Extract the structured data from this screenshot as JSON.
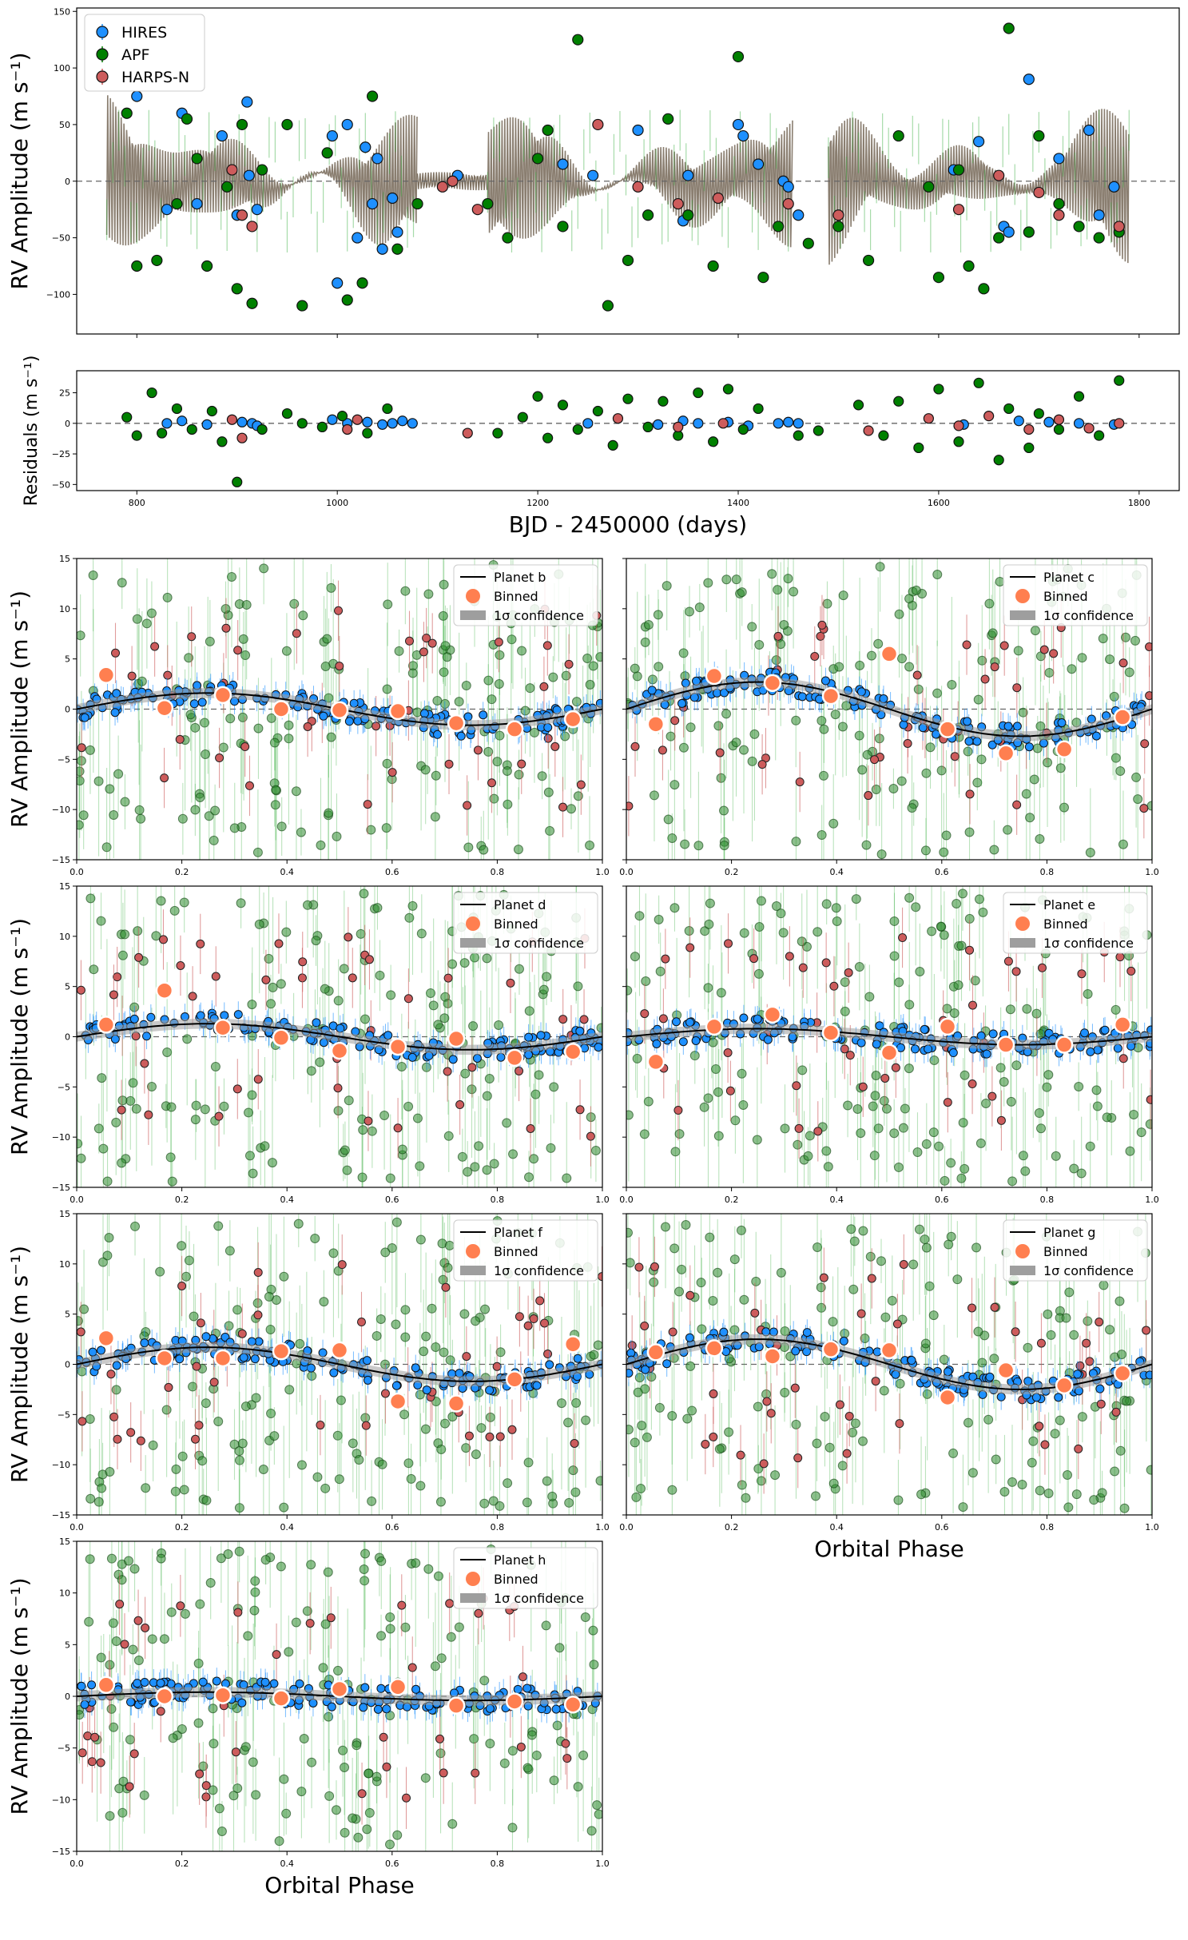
{
  "instruments": [
    {
      "name": "HIRES",
      "color": "#1E90FF"
    },
    {
      "name": "APF",
      "color": "#008000"
    },
    {
      "name": "HARPS-N",
      "color": "#CD5C5C"
    }
  ],
  "colors": {
    "model": "#7d7060",
    "binned": "#FF7F50",
    "confidence": "#9e9e9e",
    "zero_line": "#666666"
  },
  "chart_data": [
    {
      "id": "rv-timeseries",
      "type": "scatter",
      "xlabel": "",
      "ylabel": "RV Amplitude (m s⁻¹)",
      "xlim": [
        740,
        1840
      ],
      "ylim": [
        -135,
        153
      ],
      "xticks": [
        "800",
        "1000",
        "1200",
        "1400",
        "1600",
        "1800"
      ],
      "yticks": [
        "−100",
        "−50",
        "0",
        "50",
        "100",
        "150"
      ],
      "legend": [
        "HIRES",
        "APF",
        "HARPS-N"
      ],
      "legend_position": "top-left",
      "zero_line": true,
      "series": [
        {
          "name": "HIRES",
          "x": [
            800,
            830,
            845,
            860,
            885,
            900,
            910,
            912,
            920,
            995,
            1000,
            1010,
            1020,
            1028,
            1035,
            1040,
            1045,
            1055,
            1060,
            1120,
            1225,
            1255,
            1300,
            1345,
            1350,
            1400,
            1405,
            1420,
            1445,
            1450,
            1460,
            1615,
            1640,
            1665,
            1670,
            1690,
            1720,
            1750,
            1760,
            1775
          ],
          "y": [
            75,
            -25,
            60,
            -20,
            40,
            -30,
            70,
            5,
            -25,
            40,
            -90,
            50,
            -50,
            30,
            -20,
            20,
            -60,
            -15,
            -45,
            5,
            15,
            5,
            45,
            -35,
            5,
            50,
            40,
            15,
            0,
            -5,
            -30,
            10,
            35,
            -40,
            -45,
            90,
            20,
            45,
            -30,
            -5
          ]
        },
        {
          "name": "APF",
          "x": [
            790,
            800,
            820,
            840,
            850,
            860,
            870,
            890,
            900,
            905,
            915,
            925,
            950,
            965,
            990,
            1010,
            1025,
            1035,
            1060,
            1080,
            1150,
            1170,
            1200,
            1210,
            1225,
            1240,
            1270,
            1290,
            1310,
            1330,
            1350,
            1375,
            1400,
            1425,
            1440,
            1470,
            1500,
            1530,
            1560,
            1590,
            1600,
            1620,
            1630,
            1645,
            1660,
            1670,
            1690,
            1700,
            1720,
            1740,
            1760,
            1780
          ],
          "y": [
            60,
            -75,
            -70,
            -20,
            55,
            20,
            -75,
            -5,
            -95,
            50,
            -108,
            10,
            50,
            -110,
            25,
            -105,
            -90,
            75,
            -60,
            -20,
            -20,
            -50,
            20,
            45,
            -40,
            125,
            -110,
            -70,
            -30,
            55,
            -30,
            -75,
            110,
            -85,
            -40,
            -55,
            -40,
            -70,
            40,
            -5,
            -85,
            10,
            -75,
            -95,
            -50,
            135,
            -45,
            40,
            -20,
            -40,
            -50,
            -45
          ]
        },
        {
          "name": "HARPS-N",
          "x": [
            895,
            905,
            915,
            1105,
            1115,
            1140,
            1260,
            1300,
            1340,
            1380,
            1450,
            1500,
            1620,
            1660,
            1700,
            1720,
            1780
          ],
          "y": [
            10,
            -30,
            -40,
            -5,
            0,
            -25,
            50,
            -5,
            -20,
            -15,
            -20,
            -30,
            -25,
            5,
            -10,
            -30,
            -40
          ]
        }
      ],
      "model_segments": [
        [
          770,
          1080
        ],
        [
          1150,
          1455
        ],
        [
          1490,
          1790
        ]
      ]
    },
    {
      "id": "residuals",
      "type": "scatter",
      "xlabel": "BJD - 2450000 (days)",
      "ylabel": "Residuals (m s⁻¹)",
      "xlim": [
        740,
        1840
      ],
      "ylim": [
        -55,
        43
      ],
      "xticks": [
        "800",
        "1000",
        "1200",
        "1400",
        "1600",
        "1800"
      ],
      "yticks": [
        "−50",
        "−25",
        "0",
        "25"
      ],
      "zero_line": true,
      "series": [
        {
          "name": "HIRES",
          "x": [
            830,
            845,
            870,
            905,
            915,
            920,
            995,
            1010,
            1030,
            1045,
            1055,
            1065,
            1075,
            1250,
            1320,
            1345,
            1360,
            1390,
            1410,
            1440,
            1450,
            1460,
            1625,
            1680,
            1710,
            1740,
            1775
          ],
          "y": [
            0,
            2,
            -1,
            1,
            0,
            -2,
            3,
            0,
            1,
            -1,
            0,
            2,
            0,
            0,
            -1,
            2,
            0,
            1,
            -2,
            0,
            1,
            0,
            -1,
            2,
            1,
            0,
            -1
          ]
        },
        {
          "name": "APF",
          "x": [
            790,
            800,
            815,
            825,
            840,
            855,
            875,
            885,
            900,
            925,
            950,
            965,
            985,
            1005,
            1030,
            1050,
            1160,
            1185,
            1200,
            1210,
            1225,
            1240,
            1260,
            1275,
            1290,
            1310,
            1325,
            1340,
            1360,
            1375,
            1390,
            1405,
            1420,
            1460,
            1480,
            1520,
            1545,
            1560,
            1580,
            1600,
            1620,
            1640,
            1660,
            1670,
            1690,
            1700,
            1720,
            1740,
            1760,
            1780
          ],
          "y": [
            5,
            -10,
            25,
            -8,
            12,
            -5,
            10,
            -15,
            -48,
            -5,
            8,
            0,
            -3,
            6,
            -8,
            12,
            -8,
            5,
            22,
            -12,
            15,
            -5,
            10,
            -18,
            20,
            -3,
            18,
            -10,
            25,
            -15,
            28,
            -5,
            12,
            -10,
            -6,
            15,
            -10,
            18,
            -20,
            28,
            -15,
            33,
            -30,
            12,
            -20,
            8,
            -5,
            22,
            -10,
            35
          ]
        },
        {
          "name": "HARPS-N",
          "x": [
            895,
            905,
            1010,
            1020,
            1130,
            1280,
            1340,
            1385,
            1530,
            1590,
            1620,
            1650,
            1690,
            1720,
            1750,
            1780
          ],
          "y": [
            3,
            -12,
            -5,
            3,
            -8,
            4,
            -3,
            0,
            -6,
            4,
            -2,
            6,
            -5,
            3,
            -4,
            0
          ]
        }
      ]
    },
    {
      "id": "planet-b",
      "type": "scatter",
      "xlabel": "",
      "ylabel": "RV Amplitude (m s⁻¹)",
      "xlim": [
        0,
        1
      ],
      "ylim": [
        -15,
        15
      ],
      "xticks": [
        "0.0",
        "0.2",
        "0.4",
        "0.6",
        "0.8",
        "1.0"
      ],
      "yticks": [
        "−15",
        "−10",
        "−5",
        "0",
        "5",
        "10",
        "15"
      ],
      "legend": [
        "Planet b",
        "Binned",
        "1σ confidence"
      ],
      "legend_position": "top-right",
      "model_amplitude": 1.6,
      "model_phase": 0.0,
      "binned": {
        "x": [
          0.056,
          0.167,
          0.278,
          0.389,
          0.5,
          0.611,
          0.722,
          0.833,
          0.944
        ],
        "y": [
          3.4,
          0.1,
          1.4,
          0.0,
          -0.1,
          -0.2,
          -1.4,
          -2.0,
          -1.0
        ]
      }
    },
    {
      "id": "planet-c",
      "type": "scatter",
      "xlabel": "",
      "ylabel": "",
      "xlim": [
        0,
        1
      ],
      "ylim": [
        -15,
        15
      ],
      "xticks": [
        "0.0",
        "0.2",
        "0.4",
        "0.6",
        "0.8",
        "1.0"
      ],
      "yticks": [
        "−15",
        "−10",
        "−5",
        "0",
        "5",
        "10",
        "15"
      ],
      "legend": [
        "Planet c",
        "Binned",
        "1σ confidence"
      ],
      "legend_position": "top-right",
      "model_amplitude": 2.7,
      "model_phase": 0.0,
      "binned": {
        "x": [
          0.056,
          0.167,
          0.278,
          0.389,
          0.5,
          0.611,
          0.722,
          0.833,
          0.944
        ],
        "y": [
          -1.5,
          3.3,
          2.6,
          1.3,
          5.5,
          -2.0,
          -4.4,
          -4.0,
          -0.8
        ]
      }
    },
    {
      "id": "planet-d",
      "type": "scatter",
      "xlabel": "",
      "ylabel": "RV Amplitude (m s⁻¹)",
      "xlim": [
        0,
        1
      ],
      "ylim": [
        -15,
        15
      ],
      "xticks": [
        "0.0",
        "0.2",
        "0.4",
        "0.6",
        "0.8",
        "1.0"
      ],
      "yticks": [
        "−15",
        "−10",
        "−5",
        "0",
        "5",
        "10",
        "15"
      ],
      "legend": [
        "Planet d",
        "Binned",
        "1σ confidence"
      ],
      "legend_position": "top-right",
      "model_amplitude": 1.3,
      "model_phase": 0.0,
      "binned": {
        "x": [
          0.056,
          0.167,
          0.278,
          0.389,
          0.5,
          0.611,
          0.722,
          0.833,
          0.944
        ],
        "y": [
          1.2,
          4.6,
          0.9,
          -0.1,
          -1.4,
          -1.0,
          -0.2,
          -2.1,
          -1.5
        ]
      }
    },
    {
      "id": "planet-e",
      "type": "scatter",
      "xlabel": "",
      "ylabel": "",
      "xlim": [
        0,
        1
      ],
      "ylim": [
        -15,
        15
      ],
      "xticks": [
        "0.0",
        "0.2",
        "0.4",
        "0.6",
        "0.8",
        "1.0"
      ],
      "yticks": [
        "−15",
        "−10",
        "−5",
        "0",
        "5",
        "10",
        "15"
      ],
      "legend": [
        "Planet e",
        "Binned",
        "1σ confidence"
      ],
      "legend_position": "top-right",
      "model_amplitude": 0.8,
      "model_phase": 0.0,
      "binned": {
        "x": [
          0.056,
          0.167,
          0.278,
          0.389,
          0.5,
          0.611,
          0.722,
          0.833,
          0.944
        ],
        "y": [
          -2.5,
          1.0,
          2.2,
          0.4,
          -1.6,
          1.0,
          -0.8,
          -0.8,
          1.2
        ]
      }
    },
    {
      "id": "planet-f",
      "type": "scatter",
      "xlabel": "",
      "ylabel": "RV Amplitude (m s⁻¹)",
      "xlim": [
        0,
        1
      ],
      "ylim": [
        -15,
        15
      ],
      "xticks": [
        "0.0",
        "0.2",
        "0.4",
        "0.6",
        "0.8",
        "1.0"
      ],
      "yticks": [
        "−15",
        "−10",
        "−5",
        "0",
        "5",
        "10",
        "15"
      ],
      "legend": [
        "Planet f",
        "Binned",
        "1σ confidence"
      ],
      "legend_position": "top-right",
      "model_amplitude": 1.7,
      "model_phase": 0.0,
      "binned": {
        "x": [
          0.056,
          0.167,
          0.278,
          0.389,
          0.5,
          0.611,
          0.722,
          0.833,
          0.944
        ],
        "y": [
          2.6,
          0.6,
          0.6,
          1.3,
          1.4,
          -3.7,
          -3.9,
          -1.5,
          2.0
        ]
      }
    },
    {
      "id": "planet-g",
      "type": "scatter",
      "xlabel": "Orbital Phase",
      "ylabel": "",
      "xlim": [
        0,
        1
      ],
      "ylim": [
        -15,
        15
      ],
      "xticks": [
        "0.0",
        "0.2",
        "0.4",
        "0.6",
        "0.8",
        "1.0"
      ],
      "yticks": [
        "−15",
        "−10",
        "−5",
        "0",
        "5",
        "10",
        "15"
      ],
      "legend": [
        "Planet g",
        "Binned",
        "1σ confidence"
      ],
      "legend_position": "top-right",
      "model_amplitude": 2.5,
      "model_phase": 0.0,
      "binned": {
        "x": [
          0.056,
          0.167,
          0.278,
          0.389,
          0.5,
          0.611,
          0.722,
          0.833,
          0.944
        ],
        "y": [
          1.2,
          1.6,
          0.8,
          1.5,
          1.4,
          -3.3,
          -0.6,
          -2.1,
          -0.9
        ]
      }
    },
    {
      "id": "planet-h",
      "type": "scatter",
      "xlabel": "Orbital Phase",
      "ylabel": "RV Amplitude (m s⁻¹)",
      "xlim": [
        0,
        1
      ],
      "ylim": [
        -15,
        15
      ],
      "xticks": [
        "0.0",
        "0.2",
        "0.4",
        "0.6",
        "0.8",
        "1.0"
      ],
      "yticks": [
        "−15",
        "−10",
        "−5",
        "0",
        "5",
        "10",
        "15"
      ],
      "legend": [
        "Planet h",
        "Binned",
        "1σ confidence"
      ],
      "legend_position": "top-right",
      "model_amplitude": 0.4,
      "model_phase": 0.0,
      "binned": {
        "x": [
          0.056,
          0.167,
          0.278,
          0.389,
          0.5,
          0.611,
          0.722,
          0.833,
          0.944
        ],
        "y": [
          1.1,
          0.0,
          0.1,
          -0.2,
          0.7,
          0.9,
          -0.9,
          -0.5,
          -0.8
        ]
      }
    }
  ]
}
